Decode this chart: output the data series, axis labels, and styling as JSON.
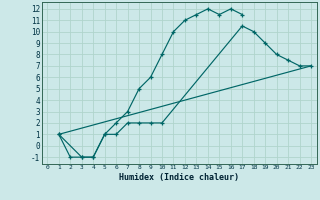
{
  "xlabel": "Humidex (Indice chaleur)",
  "background_color": "#cce8e8",
  "grid_color": "#b0d4cc",
  "line_color": "#006666",
  "xlim": [
    -0.5,
    23.5
  ],
  "ylim": [
    -1.6,
    12.6
  ],
  "xticks": [
    0,
    1,
    2,
    3,
    4,
    5,
    6,
    7,
    8,
    9,
    10,
    11,
    12,
    13,
    14,
    15,
    16,
    17,
    18,
    19,
    20,
    21,
    22,
    23
  ],
  "yticks": [
    -1,
    0,
    1,
    2,
    3,
    4,
    5,
    6,
    7,
    8,
    9,
    10,
    11,
    12
  ],
  "curve1_x": [
    1,
    2,
    3,
    4,
    5,
    6,
    7,
    8,
    9,
    10,
    11,
    12,
    13,
    14,
    15,
    16,
    17
  ],
  "curve1_y": [
    1,
    -1,
    -1,
    -1,
    1,
    2,
    3,
    5,
    6,
    8,
    10,
    11,
    11.5,
    12,
    11.5,
    12,
    11.5
  ],
  "curve2_x": [
    1,
    3,
    4,
    5,
    6,
    7,
    8,
    9,
    10,
    17,
    18,
    19,
    20,
    21,
    22,
    23
  ],
  "curve2_y": [
    1,
    -1,
    -1,
    1,
    1,
    2,
    2,
    2,
    2,
    10.5,
    10,
    9,
    8,
    7.5,
    7,
    7
  ],
  "curve3_x": [
    1,
    23
  ],
  "curve3_y": [
    1,
    7
  ]
}
